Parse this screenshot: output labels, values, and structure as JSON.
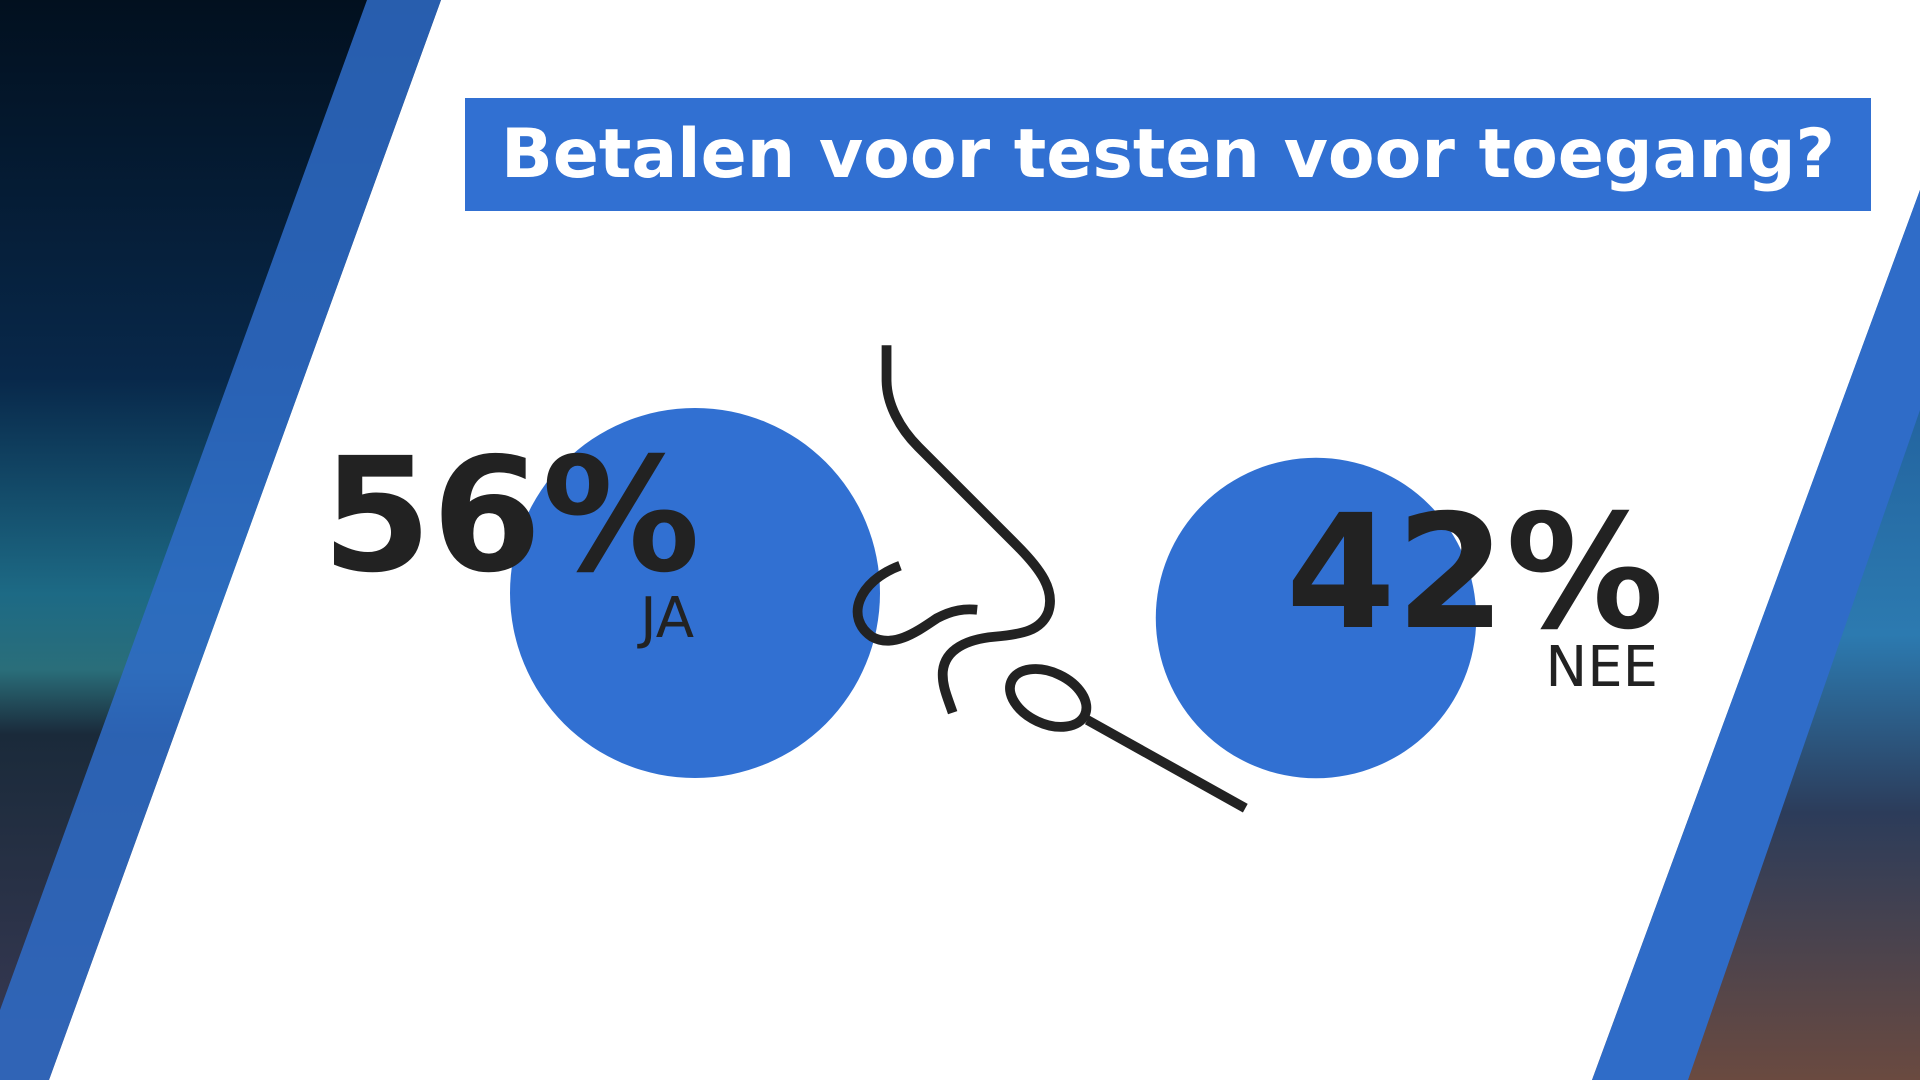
{
  "chart_data": {
    "type": "bubble",
    "title": "Betalen voor testen voor toegang?",
    "categories": [
      "JA",
      "NEE"
    ],
    "values": [
      56,
      42
    ],
    "value_labels": [
      "56%",
      "42%"
    ],
    "color": "#3170d2"
  }
}
